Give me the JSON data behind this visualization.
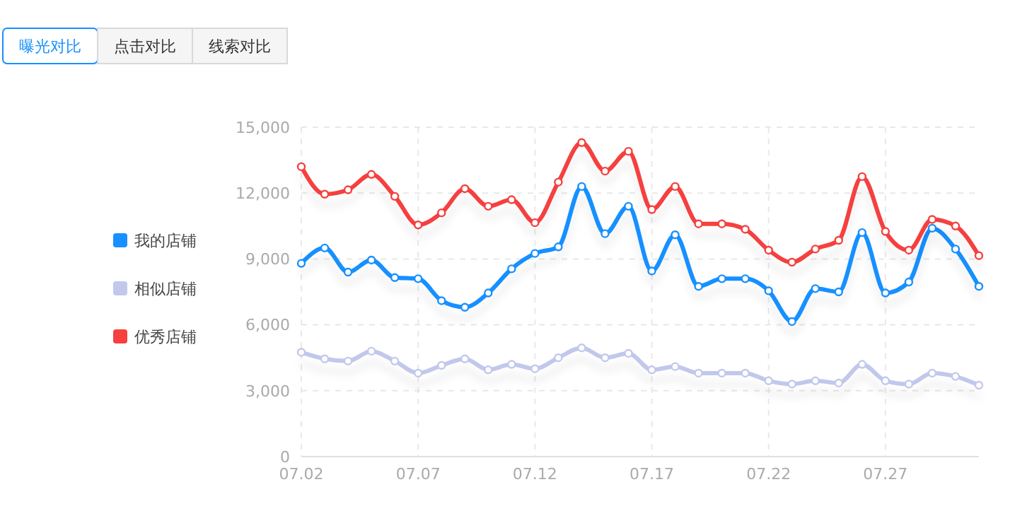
{
  "chart_data": {
    "type": "line",
    "annotations": [
      "曝光对比",
      "点击对比",
      "线索对比"
    ],
    "categories": [
      "07.02",
      null,
      null,
      null,
      null,
      "07.07",
      null,
      null,
      null,
      null,
      "07.12",
      null,
      null,
      null,
      null,
      "07.17",
      null,
      null,
      null,
      null,
      "07.22",
      null,
      null,
      null,
      null,
      "07.27",
      null,
      null,
      null,
      null
    ],
    "series": [
      {
        "name": "我的店铺",
        "color": "#1890ff",
        "values": [
          8800,
          9500,
          8400,
          8950,
          8150,
          8100,
          7100,
          6800,
          7450,
          8550,
          9250,
          9550,
          12300,
          10150,
          11400,
          8450,
          10100,
          7750,
          8100,
          8100,
          7550,
          6150,
          7650,
          7500,
          10200,
          7450,
          7950,
          10400,
          9450,
          7750
        ]
      },
      {
        "name": "相似店铺",
        "color": "#c2c8ec",
        "values": [
          4750,
          4450,
          4350,
          4800,
          4350,
          3800,
          4150,
          4450,
          3950,
          4200,
          4000,
          4500,
          4950,
          4500,
          4700,
          3950,
          4100,
          3800,
          3800,
          3800,
          3450,
          3300,
          3450,
          3350,
          4200,
          3450,
          3300,
          3800,
          3650,
          3250
        ]
      },
      {
        "name": "优秀店铺",
        "color": "#f5403f",
        "values": [
          13200,
          11950,
          12150,
          12850,
          11850,
          10550,
          11100,
          12200,
          11400,
          11700,
          10650,
          12500,
          14300,
          13000,
          13900,
          11250,
          12300,
          10600,
          10600,
          10350,
          9400,
          8850,
          9450,
          9850,
          12750,
          10250,
          9400,
          10800,
          10500,
          9150
        ]
      }
    ],
    "ylim": [
      0,
      15000
    ],
    "yticks": [
      {
        "value": 0,
        "label": "0"
      },
      {
        "value": 3000,
        "label": "3,000"
      },
      {
        "value": 6000,
        "label": "6,000"
      },
      {
        "value": 9000,
        "label": "9,000"
      },
      {
        "value": 12000,
        "label": "12,000"
      },
      {
        "value": 15000,
        "label": "15,000"
      }
    ],
    "grid": true,
    "legend": "left",
    "marker": "circle",
    "line_style": "solid"
  }
}
